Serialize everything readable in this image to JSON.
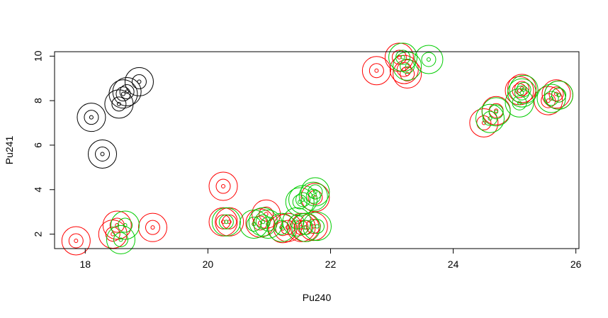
{
  "chart_data": {
    "type": "scatter",
    "title": "",
    "xlabel": "Pu240",
    "ylabel": "Pu241",
    "xlim": [
      17.5,
      26.05
    ],
    "ylim": [
      1.35,
      10.2
    ],
    "xticks": [
      18,
      20,
      22,
      24,
      26
    ],
    "yticks": [
      2,
      4,
      6,
      8,
      10
    ],
    "grid": false,
    "legend": "none",
    "marker": "concentric circles (point, inner ring, outer ring)",
    "series": [
      {
        "color": "#000000",
        "points": [
          [
            18.1,
            7.25
          ],
          [
            18.28,
            5.6
          ],
          [
            18.55,
            7.85
          ],
          [
            18.62,
            8.3
          ],
          [
            18.68,
            8.4
          ],
          [
            18.88,
            8.85
          ]
        ]
      },
      {
        "color": "#ff0000",
        "points": [
          [
            17.85,
            1.7
          ],
          [
            18.45,
            2.0
          ],
          [
            18.52,
            2.4
          ],
          [
            19.1,
            2.3
          ],
          [
            20.25,
            4.15
          ],
          [
            20.25,
            2.55
          ],
          [
            20.35,
            2.55
          ],
          [
            20.85,
            2.5
          ],
          [
            20.95,
            2.9
          ],
          [
            21.22,
            2.25
          ],
          [
            21.3,
            2.3
          ],
          [
            21.52,
            2.3
          ],
          [
            21.58,
            2.3
          ],
          [
            21.72,
            2.35
          ],
          [
            21.75,
            3.65
          ],
          [
            22.75,
            9.35
          ],
          [
            23.12,
            9.95
          ],
          [
            23.2,
            9.4
          ],
          [
            23.25,
            9.2
          ],
          [
            24.5,
            7.0
          ],
          [
            24.7,
            7.55
          ],
          [
            25.08,
            8.45
          ],
          [
            25.12,
            8.55
          ],
          [
            25.55,
            8.0
          ],
          [
            25.68,
            8.3
          ],
          [
            25.72,
            8.25
          ]
        ]
      },
      {
        "color": "#00cc00",
        "points": [
          [
            18.58,
            1.75
          ],
          [
            18.65,
            2.4
          ],
          [
            20.3,
            2.55
          ],
          [
            20.75,
            2.45
          ],
          [
            20.9,
            2.55
          ],
          [
            20.98,
            2.45
          ],
          [
            21.2,
            2.3
          ],
          [
            21.45,
            2.55
          ],
          [
            21.5,
            3.45
          ],
          [
            21.55,
            3.55
          ],
          [
            21.6,
            2.3
          ],
          [
            21.72,
            3.7
          ],
          [
            21.75,
            3.9
          ],
          [
            21.78,
            2.35
          ],
          [
            23.18,
            9.95
          ],
          [
            23.25,
            9.55
          ],
          [
            23.6,
            9.85
          ],
          [
            24.6,
            7.2
          ],
          [
            24.7,
            7.5
          ],
          [
            25.08,
            7.9
          ],
          [
            25.12,
            8.35
          ],
          [
            25.15,
            8.5
          ],
          [
            25.6,
            8.1
          ],
          [
            25.72,
            8.25
          ]
        ]
      }
    ]
  }
}
